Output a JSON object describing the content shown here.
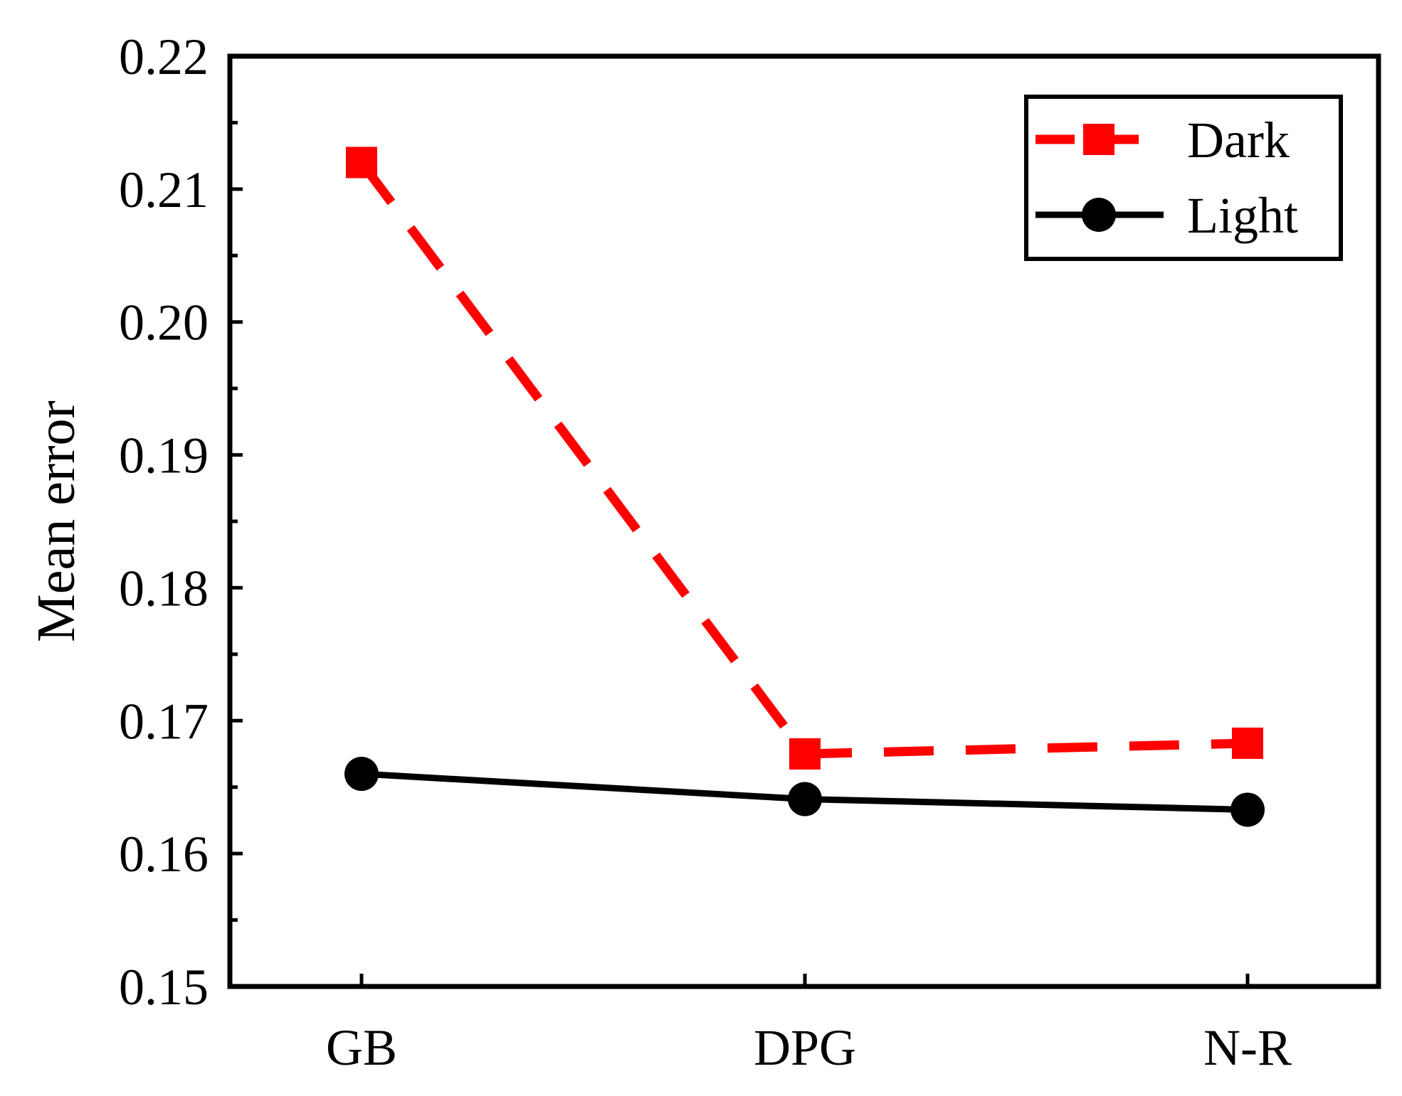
{
  "chart_data": {
    "type": "line",
    "title": "",
    "xlabel": "",
    "ylabel": "Mean error",
    "categories": [
      "GB",
      "DPG",
      "N-R"
    ],
    "ylim": [
      0.15,
      0.22
    ],
    "yticks": [
      0.15,
      0.16,
      0.17,
      0.18,
      0.19,
      0.2,
      0.21,
      0.22
    ],
    "ytick_labels": [
      "0.15",
      "0.16",
      "0.17",
      "0.18",
      "0.19",
      "0.20",
      "0.21",
      "0.22"
    ],
    "grid": false,
    "legend_position": "top-right",
    "series": [
      {
        "name": "Dark",
        "values": [
          0.212,
          0.1675,
          0.1683
        ],
        "color": "#ff0000",
        "line_style": "dashed",
        "marker": "square"
      },
      {
        "name": "Light",
        "values": [
          0.166,
          0.1641,
          0.1633
        ],
        "color": "#000000",
        "line_style": "solid",
        "marker": "circle"
      }
    ]
  }
}
